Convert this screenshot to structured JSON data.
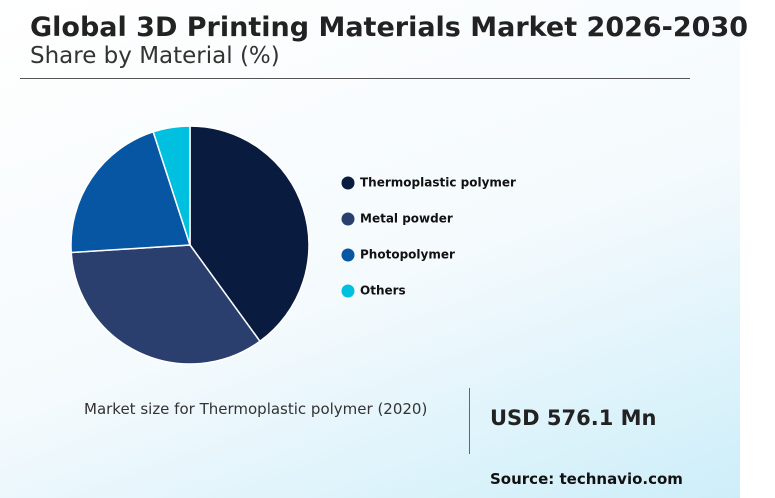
{
  "chart_data": {
    "type": "pie",
    "title": "Global 3D Printing Materials Market 2026-2030",
    "subtitle": "Share by Material (%)",
    "categories": [
      "Thermoplastic polymer",
      "Metal powder",
      "Photopolymer",
      "Others"
    ],
    "values": [
      40,
      34,
      21,
      5
    ],
    "colors": [
      "#0a1b40",
      "#2a3f6e",
      "#0656a3",
      "#00c0e0"
    ],
    "legend": "right"
  },
  "stat": {
    "label": "Market size for Thermoplastic polymer (2020)",
    "value": "USD 576.1 Mn"
  },
  "source": "Source: technavio.com"
}
